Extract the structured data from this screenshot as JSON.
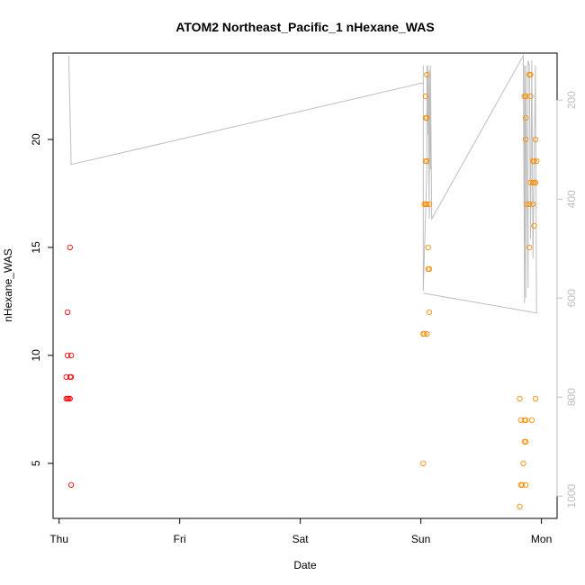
{
  "chart_data": {
    "type": "scatter",
    "title": "ATOM2 Northeast_Pacific_1 nHexane_WAS",
    "xlabel": "Date",
    "ylabel": "nHexane_WAS",
    "x_unit": "days since Thu 00:00",
    "xlim": [
      -0.05,
      4.13
    ],
    "ylim": [
      2.45,
      24.0
    ],
    "x_ticks": [
      {
        "value": 0,
        "label": "Thu"
      },
      {
        "value": 1,
        "label": "Fri"
      },
      {
        "value": 2,
        "label": "Sat"
      },
      {
        "value": 3,
        "label": "Sun"
      },
      {
        "value": 4,
        "label": "Mon"
      }
    ],
    "y_ticks": [
      5,
      10,
      15,
      20
    ],
    "right_axis": {
      "lim": [
        1045,
        105
      ],
      "ticks": [
        200,
        400,
        600,
        800,
        1000
      ],
      "color": "#bebebe"
    },
    "grid": false,
    "series": [
      {
        "name": "",
        "color": "#ff0000",
        "marker": "circle-open",
        "points": [
          [
            0.06,
            8.0
          ],
          [
            0.07,
            8.0
          ],
          [
            0.08,
            8.0
          ],
          [
            0.06,
            9.0
          ],
          [
            0.07,
            10.0
          ],
          [
            0.07,
            12.0
          ],
          [
            0.09,
            9.0
          ],
          [
            0.1,
            9.0
          ],
          [
            0.09,
            8.0
          ],
          [
            0.1,
            10.0
          ],
          [
            0.09,
            15.0
          ],
          [
            0.1,
            4.0
          ]
        ]
      },
      {
        "name": "",
        "color": "#ff8c00",
        "marker": "circle-open",
        "points": [
          [
            3.02,
            5.0
          ],
          [
            3.02,
            11.0
          ],
          [
            3.03,
            11.0
          ],
          [
            3.05,
            11.0
          ],
          [
            3.03,
            17.0
          ],
          [
            3.04,
            17.0
          ],
          [
            3.05,
            17.0
          ],
          [
            3.07,
            17.0
          ],
          [
            3.04,
            19.0
          ],
          [
            3.05,
            19.0
          ],
          [
            3.04,
            21.0
          ],
          [
            3.05,
            21.0
          ],
          [
            3.04,
            22.0
          ],
          [
            3.05,
            23.0
          ],
          [
            3.06,
            15.0
          ],
          [
            3.06,
            14.0
          ],
          [
            3.07,
            14.0
          ],
          [
            3.07,
            12.0
          ],
          [
            3.82,
            8.0
          ],
          [
            3.83,
            7.0
          ],
          [
            3.83,
            4.0
          ],
          [
            3.84,
            4.0
          ],
          [
            3.82,
            3.0
          ],
          [
            3.85,
            5.0
          ],
          [
            3.86,
            7.0
          ],
          [
            3.87,
            7.0
          ],
          [
            3.86,
            6.0
          ],
          [
            3.87,
            6.0
          ],
          [
            3.87,
            4.0
          ],
          [
            3.86,
            22.0
          ],
          [
            3.87,
            22.0
          ],
          [
            3.87,
            21.0
          ],
          [
            3.87,
            20.0
          ],
          [
            3.88,
            17.0
          ],
          [
            3.9,
            23.0
          ],
          [
            3.91,
            23.0
          ],
          [
            3.9,
            17.0
          ],
          [
            3.9,
            15.0
          ],
          [
            3.91,
            18.0
          ],
          [
            3.91,
            22.0
          ],
          [
            3.92,
            7.0
          ],
          [
            3.93,
            19.0
          ],
          [
            3.94,
            19.0
          ],
          [
            3.93,
            18.0
          ],
          [
            3.94,
            18.0
          ],
          [
            3.93,
            17.0
          ],
          [
            3.94,
            16.0
          ],
          [
            3.95,
            20.0
          ],
          [
            3.95,
            8.0
          ],
          [
            3.95,
            18.0
          ],
          [
            3.96,
            19.0
          ]
        ]
      }
    ],
    "profile_line": {
      "color": "#bebebe",
      "axis": "right",
      "points": [
        [
          0.08,
          110
        ],
        [
          0.1,
          330
        ],
        [
          3.02,
          165
        ],
        [
          3.02,
          130
        ],
        [
          3.02,
          585
        ],
        [
          3.05,
          340
        ],
        [
          3.05,
          130
        ],
        [
          3.06,
          270
        ],
        [
          3.06,
          130
        ],
        [
          3.07,
          440
        ],
        [
          3.07,
          140
        ],
        [
          3.08,
          340
        ],
        [
          3.08,
          130
        ],
        [
          3.09,
          440
        ],
        [
          3.85,
          110
        ],
        [
          3.85,
          140
        ],
        [
          3.86,
          610
        ],
        [
          3.86,
          130
        ],
        [
          3.87,
          600
        ],
        [
          3.87,
          130
        ],
        [
          3.89,
          580
        ],
        [
          3.89,
          120
        ],
        [
          3.9,
          130
        ],
        [
          3.91,
          480
        ],
        [
          3.92,
          120
        ],
        [
          3.93,
          520
        ],
        [
          3.95,
          130
        ],
        [
          3.96,
          630
        ],
        [
          3.02,
          590
        ]
      ]
    }
  }
}
